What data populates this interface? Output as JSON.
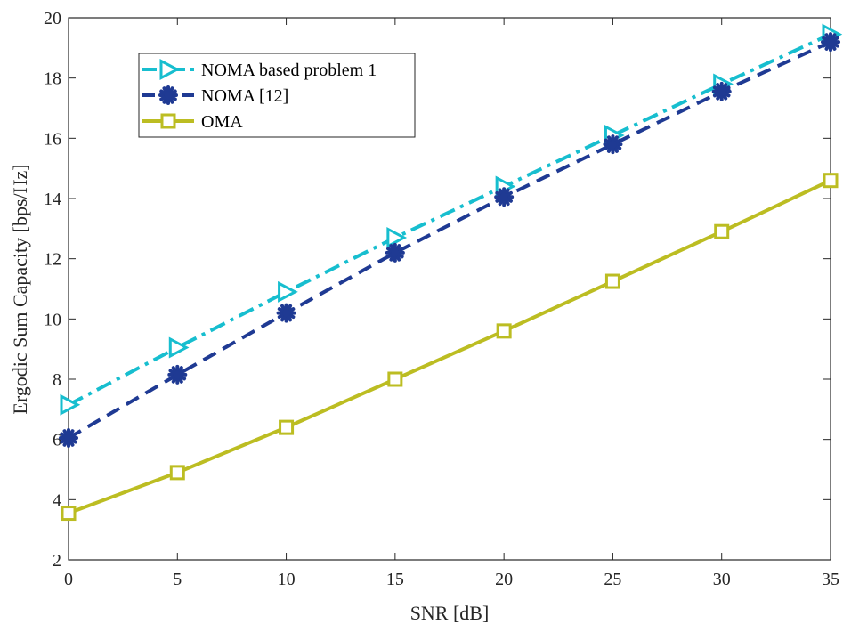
{
  "chart_data": {
    "type": "line",
    "xlabel": "SNR [dB]",
    "ylabel": "Ergodic Sum Capacity [bps/Hz]",
    "xlim": [
      0,
      35
    ],
    "ylim": [
      2,
      20
    ],
    "xticks": [
      "0",
      "5",
      "10",
      "15",
      "20",
      "25",
      "30",
      "35"
    ],
    "yticks": [
      "2",
      "4",
      "6",
      "8",
      "10",
      "12",
      "14",
      "16",
      "18",
      "20"
    ],
    "grid": false,
    "legend_position": "top-left",
    "x": [
      0,
      5,
      10,
      15,
      20,
      25,
      30,
      35
    ],
    "series": [
      {
        "name": "NOMA based problem 1",
        "values": [
          7.15,
          9.05,
          10.9,
          12.7,
          14.4,
          16.1,
          17.8,
          19.45
        ],
        "color": "#17BECF",
        "line_style": "dash-dot",
        "marker": "triangle-right"
      },
      {
        "name": "NOMA [12]",
        "values": [
          6.05,
          8.15,
          10.2,
          12.2,
          14.05,
          15.8,
          17.55,
          19.2
        ],
        "color": "#1F3A93",
        "line_style": "dashed",
        "marker": "asterisk"
      },
      {
        "name": "OMA",
        "values": [
          3.55,
          4.9,
          6.4,
          8.0,
          9.6,
          11.25,
          12.9,
          14.6
        ],
        "color": "#BCBD22",
        "line_style": "solid",
        "marker": "square"
      }
    ]
  }
}
